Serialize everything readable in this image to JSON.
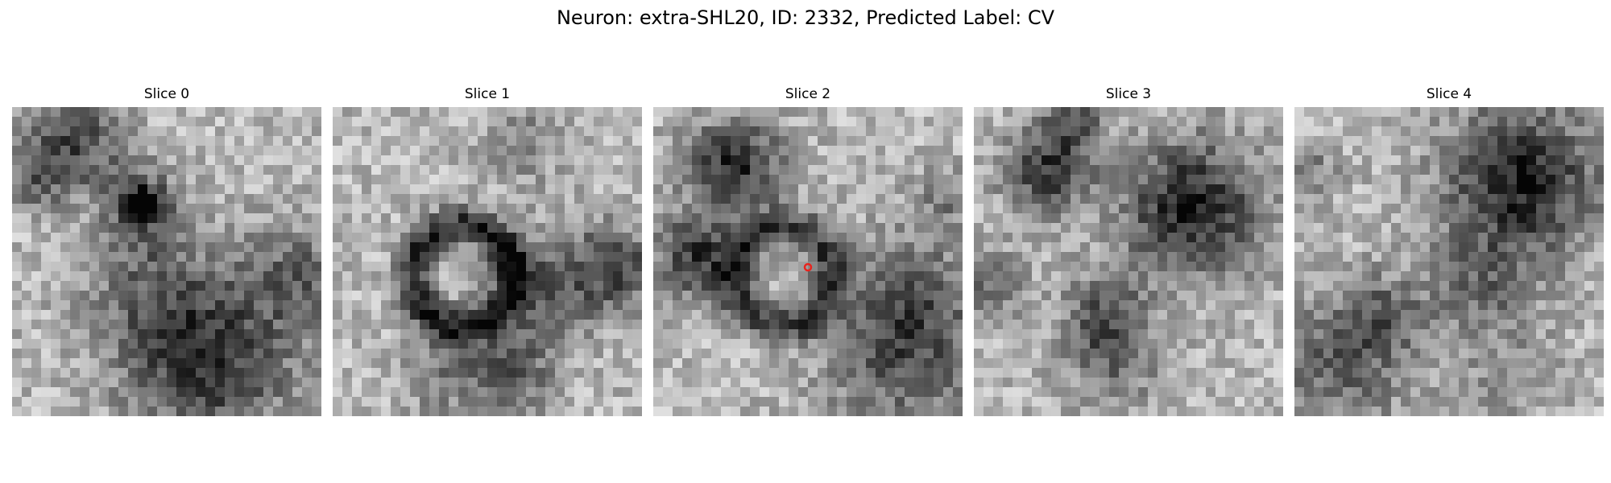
{
  "figure": {
    "title": "Neuron: extra-SHL20, ID: 2332, Predicted Label: CV"
  },
  "slices": [
    {
      "title": "Slice 0"
    },
    {
      "title": "Slice 1"
    },
    {
      "title": "Slice 2",
      "marker_color": "#e8241e"
    },
    {
      "title": "Slice 3"
    },
    {
      "title": "Slice 4"
    }
  ],
  "colormap": "gray"
}
